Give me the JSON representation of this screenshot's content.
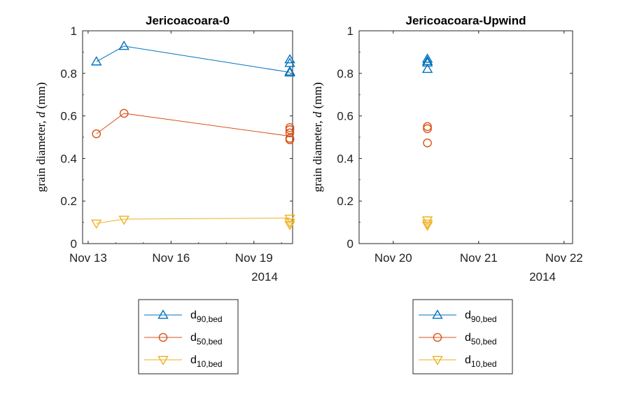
{
  "chart_data": [
    {
      "type": "line",
      "title": "Jericoacoara-0",
      "ylabel": "grain diameter, d (mm)",
      "ylabel_main": "grain diameter, ",
      "ylabel_var": "d",
      "ylabel_unit": " (mm)",
      "xlabel": "",
      "year_label": "2014",
      "x_tick_labels": [
        "Nov 13",
        "Nov 16",
        "Nov 19"
      ],
      "x_ticks": [
        "2014-11-13",
        "2014-11-16",
        "2014-11-19"
      ],
      "xlim": [
        "2014-11-12.8",
        "2014-11-20.4"
      ],
      "ylim": [
        0,
        1
      ],
      "y_tick_labels": [
        "0",
        "0.2",
        "0.4",
        "0.6",
        "0.8",
        "1"
      ],
      "grid": false,
      "legend_position": "below",
      "series": [
        {
          "name": "d90,bed",
          "name_main": "d",
          "name_sub": "90,bed",
          "color": "#0072BD",
          "marker": "triangle-up",
          "x": [
            "2014-11-13.3",
            "2014-11-14.3",
            "2014-11-20.3",
            "2014-11-20.3",
            "2014-11-20.3",
            "2014-11-20.3"
          ],
          "y": [
            0.855,
            0.928,
            0.865,
            0.848,
            0.808,
            0.803
          ],
          "line_x": [
            "2014-11-13.3",
            "2014-11-14.3",
            "2014-11-20.3"
          ],
          "line_y": [
            0.855,
            0.928,
            0.805
          ]
        },
        {
          "name": "d50,bed",
          "name_main": "d",
          "name_sub": "50,bed",
          "color": "#D95319",
          "marker": "circle",
          "x": [
            "2014-11-13.3",
            "2014-11-14.3",
            "2014-11-20.3",
            "2014-11-20.3",
            "2014-11-20.3",
            "2014-11-20.3",
            "2014-11-20.3"
          ],
          "y": [
            0.516,
            0.612,
            0.545,
            0.535,
            0.52,
            0.495,
            0.488
          ],
          "line_x": [
            "2014-11-13.3",
            "2014-11-14.3",
            "2014-11-20.3"
          ],
          "line_y": [
            0.516,
            0.612,
            0.505
          ]
        },
        {
          "name": "d10,bed",
          "name_main": "d",
          "name_sub": "10,bed",
          "color": "#EDB120",
          "marker": "triangle-down",
          "x": [
            "2014-11-13.3",
            "2014-11-14.3",
            "2014-11-20.3",
            "2014-11-20.3",
            "2014-11-20.3"
          ],
          "y": [
            0.095,
            0.113,
            0.118,
            0.1,
            0.088
          ],
          "line_x": [
            "2014-11-13.3",
            "2014-11-14.3",
            "2014-11-20.3"
          ],
          "line_y": [
            0.095,
            0.115,
            0.12
          ]
        }
      ]
    },
    {
      "type": "scatter",
      "title": "Jericoacoara-Upwind",
      "ylabel": "grain diameter, d (mm)",
      "ylabel_main": "grain diameter, ",
      "ylabel_var": "d",
      "ylabel_unit": " (mm)",
      "xlabel": "",
      "year_label": "2014",
      "x_tick_labels": [
        "Nov 20",
        "Nov 21",
        "Nov 22"
      ],
      "x_ticks": [
        "2014-11-20",
        "2014-11-21",
        "2014-11-22"
      ],
      "xlim": [
        "2014-11-19.6",
        "2014-11-22.1"
      ],
      "ylim": [
        0,
        1
      ],
      "y_tick_labels": [
        "0",
        "0.2",
        "0.4",
        "0.6",
        "0.8",
        "1"
      ],
      "grid": false,
      "legend_position": "below",
      "series": [
        {
          "name": "d90,bed",
          "name_main": "d",
          "name_sub": "90,bed",
          "color": "#0072BD",
          "marker": "triangle-up",
          "x": [
            "2014-11-20.4",
            "2014-11-20.4",
            "2014-11-20.4",
            "2014-11-20.4"
          ],
          "y": [
            0.868,
            0.857,
            0.85,
            0.82
          ],
          "line_x": [],
          "line_y": []
        },
        {
          "name": "d50,bed",
          "name_main": "d",
          "name_sub": "50,bed",
          "color": "#D95319",
          "marker": "circle",
          "x": [
            "2014-11-20.4",
            "2014-11-20.4",
            "2014-11-20.4"
          ],
          "y": [
            0.55,
            0.54,
            0.473
          ],
          "line_x": [],
          "line_y": []
        },
        {
          "name": "d10,bed",
          "name_main": "d",
          "name_sub": "10,bed",
          "color": "#EDB120",
          "marker": "triangle-down",
          "x": [
            "2014-11-20.4",
            "2014-11-20.4",
            "2014-11-20.4"
          ],
          "y": [
            0.11,
            0.095,
            0.085
          ],
          "line_x": [],
          "line_y": []
        }
      ]
    }
  ]
}
